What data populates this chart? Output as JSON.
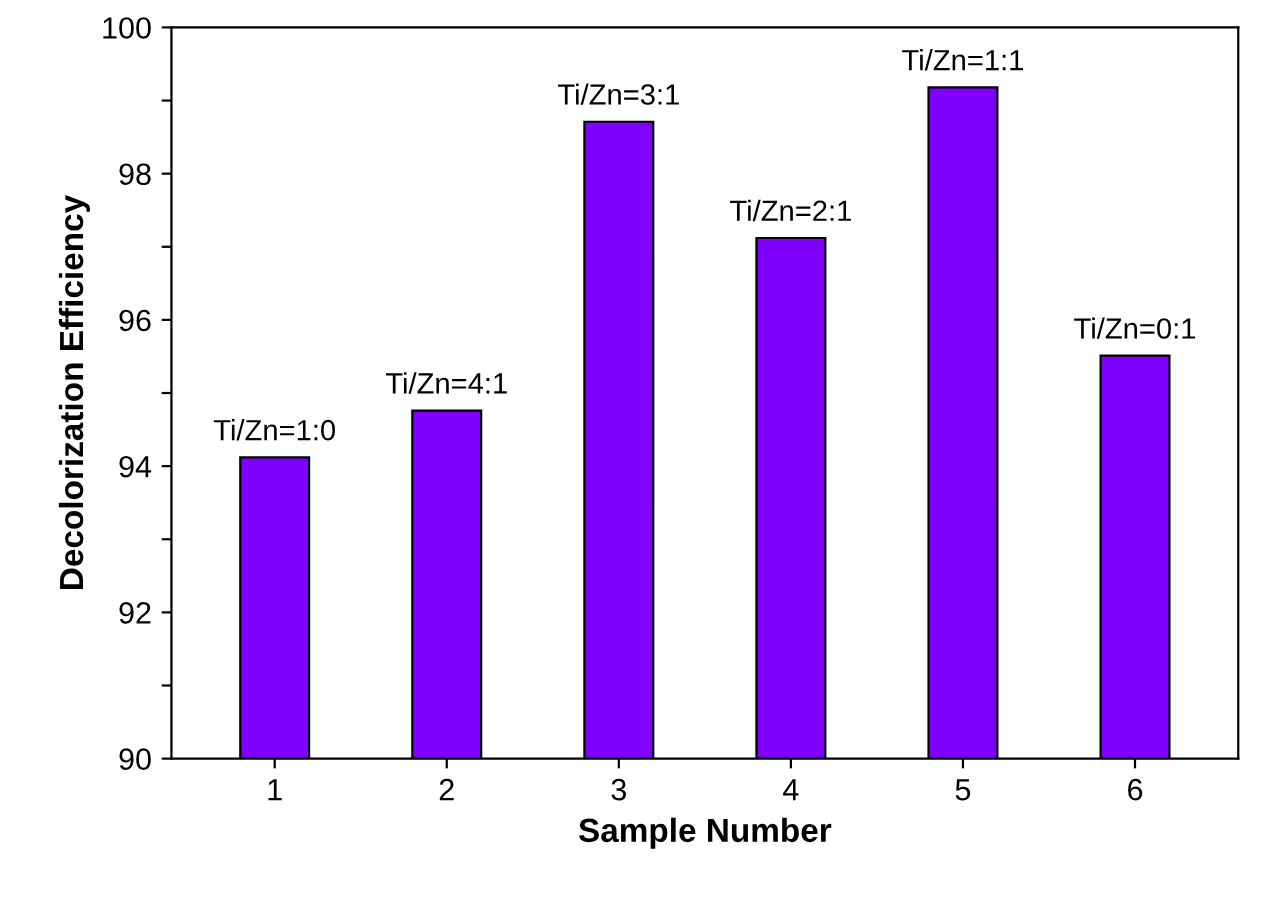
{
  "chart_data": {
    "type": "bar",
    "xlabel": "Sample Number",
    "ylabel": "Decolorization Efficiency",
    "categories": [
      "1",
      "2",
      "3",
      "4",
      "5",
      "6"
    ],
    "values": [
      94.12,
      94.76,
      98.71,
      97.12,
      99.18,
      95.51
    ],
    "color": "#7f00ff",
    "ylim": [
      90,
      100
    ],
    "yticks": [
      90,
      {
        "value": 91,
        "label": null
      },
      92,
      {
        "value": 93,
        "label": null
      },
      94,
      {
        "value": 95,
        "label": null
      },
      96,
      {
        "value": 97,
        "label": null
      },
      98,
      {
        "value": 99,
        "label": null
      },
      100
    ],
    "annotations": [
      {
        "text": "Ti/Zn=1:0",
        "x": "1",
        "y": 94.12
      },
      {
        "text": "Ti/Zn=4:1",
        "x": "2",
        "y": 94.76
      },
      {
        "text": "Ti/Zn=3:1",
        "x": "3",
        "y": 98.71
      },
      {
        "text": "Ti/Zn=2:1",
        "x": "4",
        "y": 97.12
      },
      {
        "text": "Ti/Zn=1:1",
        "x": "5",
        "y": 99.18
      },
      {
        "text": "Ti/Zn=0:1",
        "x": "6",
        "y": 95.51
      }
    ],
    "grid": false,
    "legend": false
  }
}
